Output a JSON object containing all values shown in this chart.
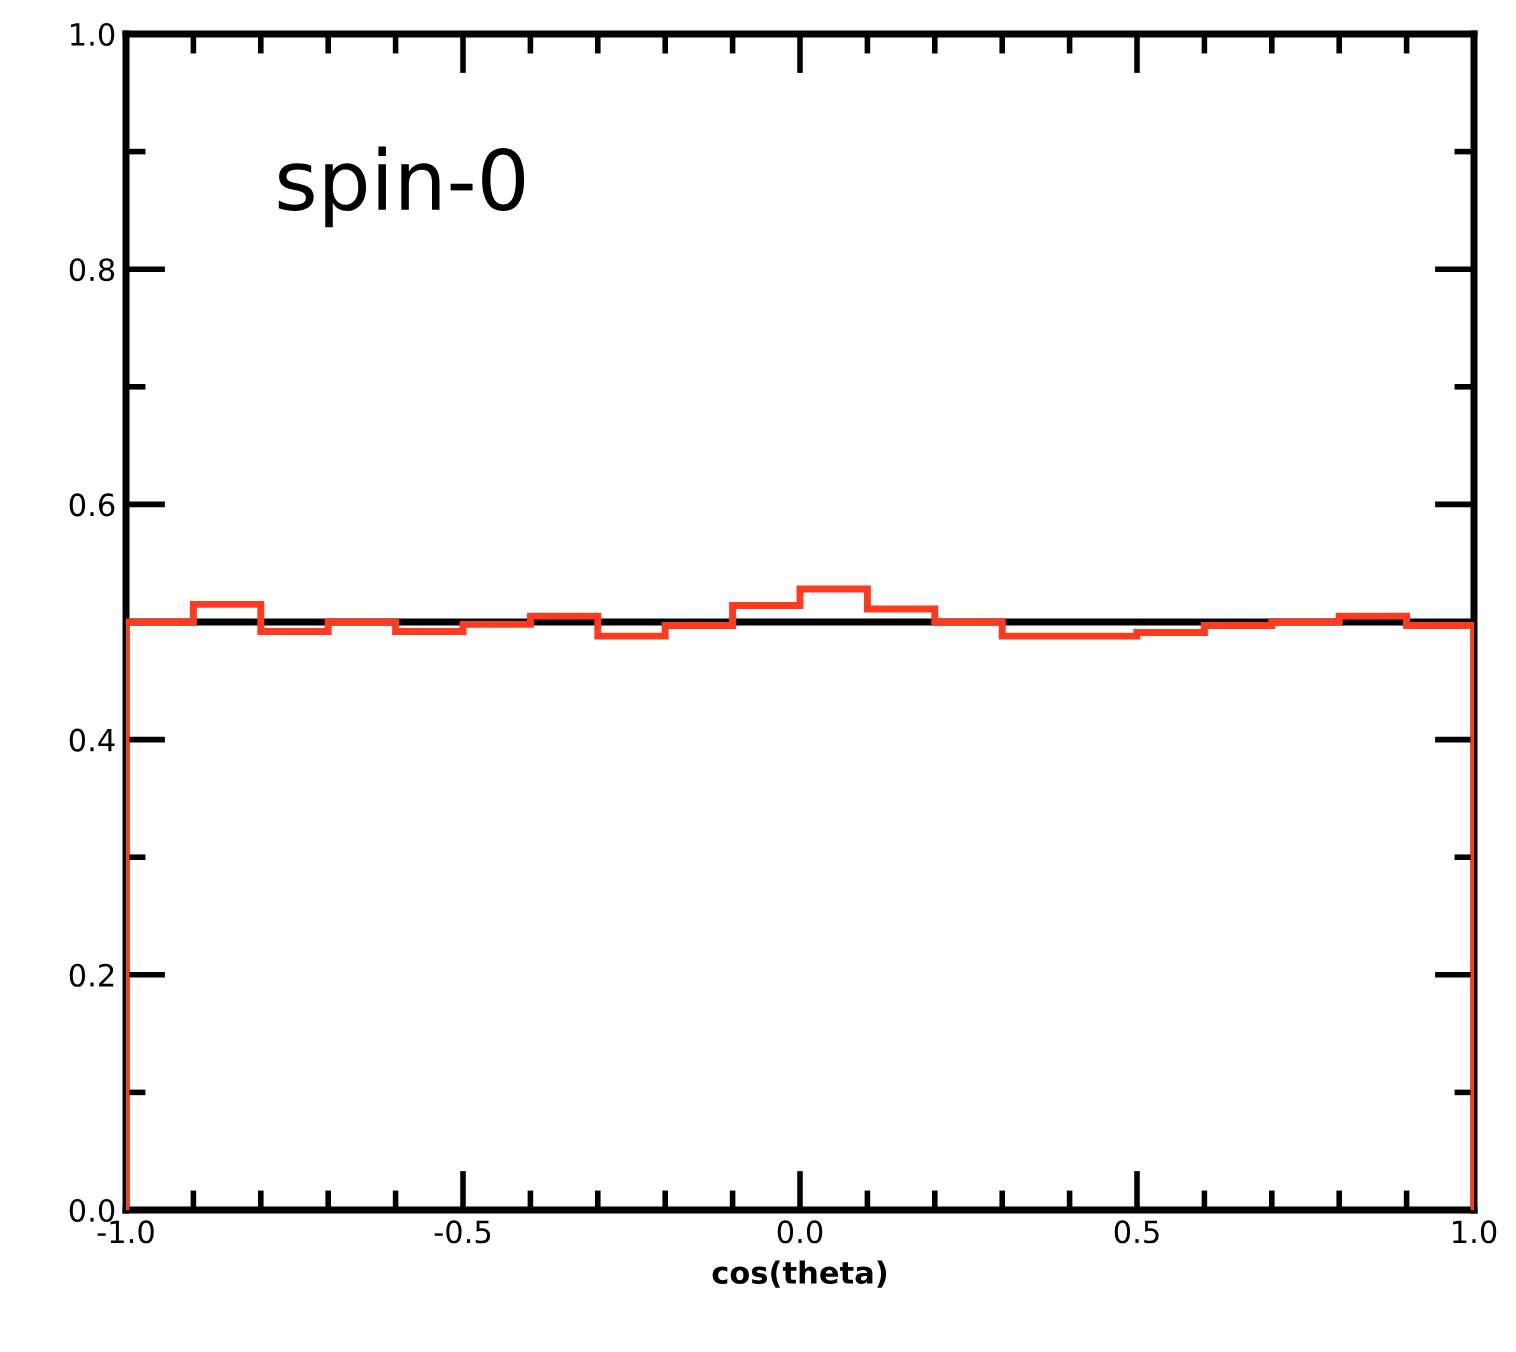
{
  "chart_data": {
    "type": "histogram",
    "xlabel": "cos(theta)",
    "annotations": [
      "spin-0"
    ],
    "bins": [
      -1.0,
      -0.9,
      -0.8,
      -0.7,
      -0.6,
      -0.5,
      -0.4,
      -0.3,
      -0.2,
      -0.1,
      0.0,
      0.1,
      0.2,
      0.3,
      0.4,
      0.5,
      0.6,
      0.7,
      0.8,
      0.9,
      1.0
    ],
    "series": [
      {
        "type": "line",
        "color": "#000000",
        "x": [
          -1.0,
          1.0
        ],
        "values": [
          0.5,
          0.5
        ]
      },
      {
        "color": "#ff3b1f",
        "values": [
          0.5,
          0.515,
          0.492,
          0.5,
          0.492,
          0.498,
          0.505,
          0.488,
          0.497,
          0.514,
          0.528,
          0.511,
          0.5,
          0.488,
          0.488,
          0.491,
          0.497,
          0.5,
          0.505,
          0.497
        ]
      }
    ],
    "xlim": [
      -1.0,
      1.0
    ],
    "ylim": [
      0.0,
      1.0
    ],
    "xticks": [
      {
        "value": -1.0,
        "label": "-1.0"
      },
      {
        "value": -0.5,
        "label": "-0.5"
      },
      {
        "value": 0.0,
        "label": "0.0"
      },
      {
        "value": 0.5,
        "label": "0.5"
      },
      {
        "value": 1.0,
        "label": "1.0"
      }
    ],
    "yticks": [
      {
        "value": 0.0,
        "label": "0.0"
      },
      {
        "value": 0.2,
        "label": "0.2"
      },
      {
        "value": 0.4,
        "label": "0.4"
      },
      {
        "value": 0.6,
        "label": "0.6"
      },
      {
        "value": 0.8,
        "label": "0.8"
      },
      {
        "value": 1.0,
        "label": "1.0"
      }
    ],
    "grid": false
  }
}
